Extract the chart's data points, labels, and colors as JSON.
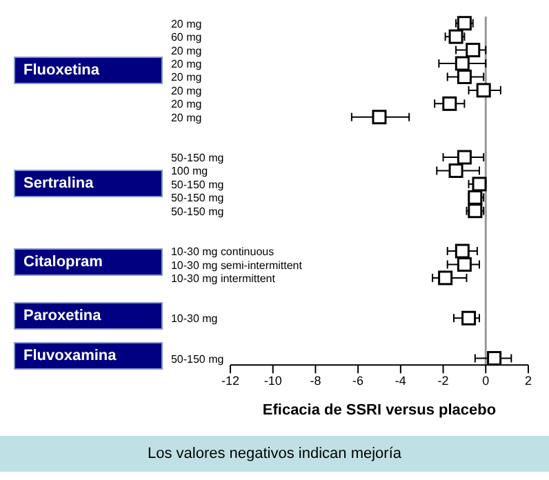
{
  "chart_data": {
    "type": "scatter",
    "xlabel": "Eficacia de SSRI versus placebo",
    "categories": [
      "20 mg",
      "60 mg",
      "20 mg",
      "20 mg",
      "20 mg",
      "20 mg",
      "20 mg",
      "20 mg",
      null,
      null,
      "50-150 mg",
      "100 mg",
      "50-150 mg",
      "50-150 mg",
      "50-150 mg",
      null,
      null,
      "10-30 mg continuous",
      "10-30 mg semi-intermittent",
      "10-30 mg intermittent",
      null,
      null,
      "10-30 mg",
      null,
      null,
      "50-150 mg"
    ],
    "series": [
      {
        "color": "#000000",
        "values": [
          -1.0,
          -1.4,
          -0.6,
          -1.1,
          -1.0,
          -0.1,
          -1.7,
          -5.0,
          null,
          null,
          -1.0,
          -1.4,
          -0.3,
          -0.5,
          -0.5,
          null,
          null,
          -1.1,
          -1.0,
          -1.9,
          null,
          null,
          -0.8,
          null,
          null,
          0.4
        ],
        "errors": [
          [
            -1.4,
            -0.6
          ],
          [
            -1.9,
            -1.0
          ],
          [
            -1.4,
            0
          ],
          [
            -2.2,
            0
          ],
          [
            -1.8,
            -0.1
          ],
          [
            -0.8,
            0.7
          ],
          [
            -2.4,
            -1.0
          ],
          [
            -6.3,
            -3.6
          ],
          null,
          null,
          [
            -2.0,
            -0.1
          ],
          [
            -2.3,
            -0.3
          ],
          [
            -0.8,
            0
          ],
          [
            -0.8,
            -0.1
          ],
          [
            -0.9,
            -0.1
          ],
          null,
          null,
          [
            -1.8,
            -0.4
          ],
          [
            -1.8,
            -0.3
          ],
          [
            -2.5,
            -0.9
          ],
          null,
          null,
          [
            -1.5,
            -0.3
          ],
          null,
          null,
          [
            -0.5,
            1.2
          ]
        ]
      }
    ],
    "orientation": "horizontal",
    "marker": "square",
    "xlim": [
      -12,
      2
    ],
    "xticks": [
      -12,
      -10,
      -8,
      -6,
      -4,
      -2,
      0,
      2
    ],
    "ref_lines": [
      {
        "axis": "x",
        "value": 0,
        "color": "#999999"
      }
    ],
    "annotations": [
      "Fluoxetina",
      "Sertralina",
      "Citalopram",
      "Paroxetina",
      "Fluvoxamina",
      "Los valores negativos indican mejoría"
    ]
  }
}
